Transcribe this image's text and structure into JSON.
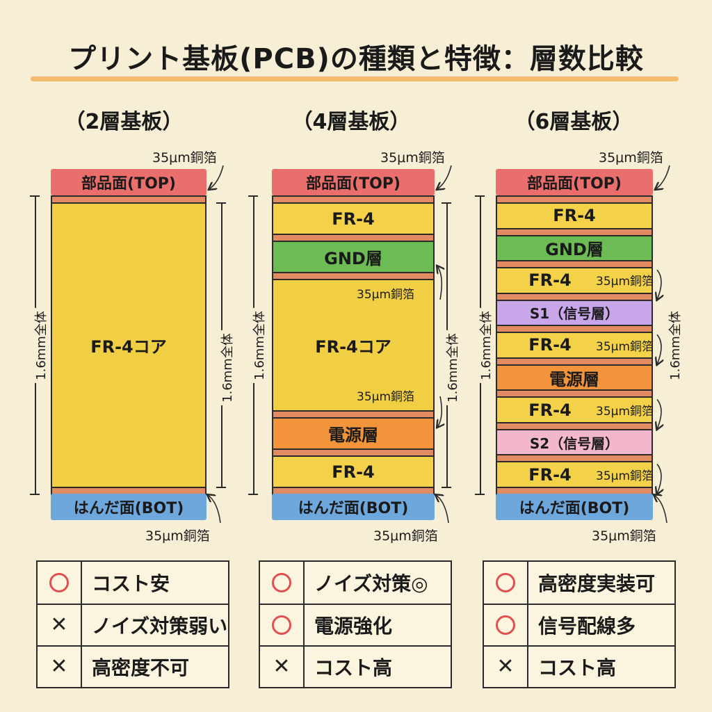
{
  "title": "プリント基板(PCB)の種類と特徴：層数比較",
  "dimension_label": "1.6mm全体",
  "foil_label": "35μm銅箔",
  "columns": [
    {
      "title": "（2層基板）",
      "top_label": "部品面(TOP)",
      "bottom_label": "はんだ面(BOT)",
      "layers": [
        {
          "type": "cu"
        },
        {
          "type": "core",
          "label": "FR-4コア"
        },
        {
          "type": "cu"
        }
      ],
      "features": [
        {
          "mark": "circle",
          "text": "コスト安"
        },
        {
          "mark": "cross",
          "text": "ノイズ対策弱い"
        },
        {
          "mark": "cross",
          "text": "高密度不可"
        }
      ]
    },
    {
      "title": "（4層基板）",
      "top_label": "部品面(TOP)",
      "bottom_label": "はんだ面(BOT)",
      "layers": [
        {
          "type": "cu"
        },
        {
          "type": "fr4",
          "label": "FR-4"
        },
        {
          "type": "cu"
        },
        {
          "type": "gnd",
          "label": "GND層"
        },
        {
          "type": "cu"
        },
        {
          "type": "core",
          "label": "FR-4コア",
          "foil_top": "35μm銅箔",
          "foil_bottom": "35μm銅箔"
        },
        {
          "type": "cu"
        },
        {
          "type": "pwr",
          "label": "電源層"
        },
        {
          "type": "cu"
        },
        {
          "type": "fr4",
          "label": "FR-4"
        },
        {
          "type": "cu"
        }
      ],
      "features": [
        {
          "mark": "circle",
          "text": "ノイズ対策◎"
        },
        {
          "mark": "circle",
          "text": "電源強化"
        },
        {
          "mark": "cross",
          "text": "コスト高"
        }
      ]
    },
    {
      "title": "（6層基板）",
      "top_label": "部品面(TOP)",
      "bottom_label": "はんだ面(BOT)",
      "layers": [
        {
          "type": "cu"
        },
        {
          "type": "fr4",
          "label": "FR-4"
        },
        {
          "type": "cu"
        },
        {
          "type": "gnd",
          "label": "GND層"
        },
        {
          "type": "cu"
        },
        {
          "type": "fr4",
          "label": "FR-4",
          "foil": "35μm銅箔"
        },
        {
          "type": "cu"
        },
        {
          "type": "sig1",
          "label": "S1（信号層）"
        },
        {
          "type": "cu"
        },
        {
          "type": "fr4",
          "label": "FR-4",
          "foil": "35μm銅箔"
        },
        {
          "type": "cu"
        },
        {
          "type": "pwr",
          "label": "電源層"
        },
        {
          "type": "cu"
        },
        {
          "type": "fr4",
          "label": "FR-4",
          "foil": "35μm銅箔"
        },
        {
          "type": "cu"
        },
        {
          "type": "sig2",
          "label": "S2（信号層）"
        },
        {
          "type": "cu"
        },
        {
          "type": "fr4",
          "label": "FR-4",
          "foil": "35μm銅箔"
        },
        {
          "type": "cu"
        }
      ],
      "features": [
        {
          "mark": "circle",
          "text": "高密度実装可"
        },
        {
          "mark": "circle",
          "text": "信号配線多"
        },
        {
          "mark": "cross",
          "text": "コスト高"
        }
      ]
    }
  ]
}
